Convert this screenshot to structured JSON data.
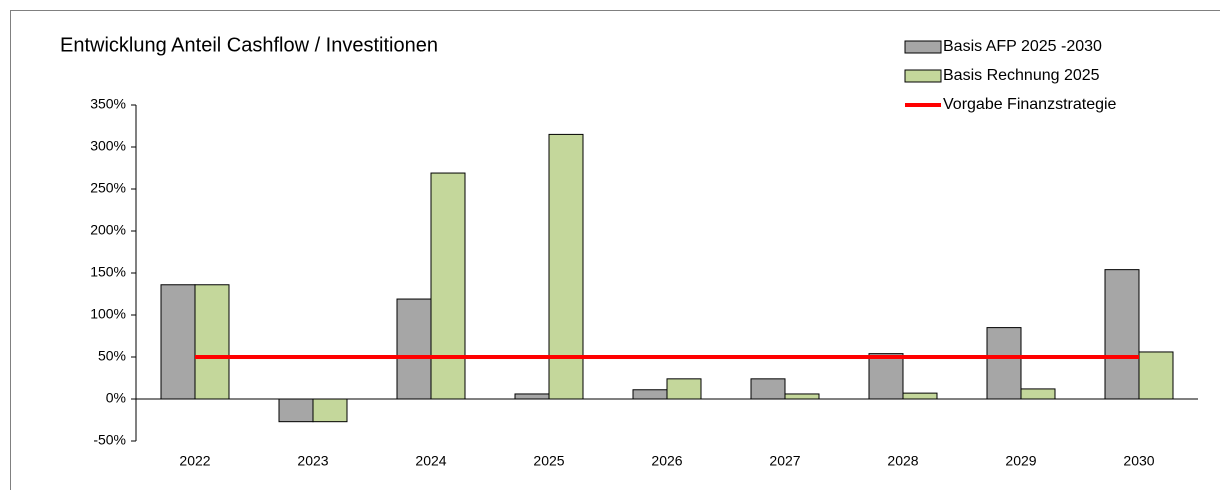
{
  "chart_data": {
    "type": "bar",
    "title": "Entwicklung Anteil Cashflow / Investitionen",
    "categories": [
      "2022",
      "2023",
      "2024",
      "2025",
      "2026",
      "2027",
      "2028",
      "2029",
      "2030"
    ],
    "series": [
      {
        "name": "Basis AFP 2025 -2030",
        "color": "#a6a6a6",
        "type": "bar",
        "values": [
          136,
          -27,
          119,
          6,
          11,
          24,
          54,
          85,
          154
        ]
      },
      {
        "name": "Basis Rechnung 2025",
        "color": "#c4d79b",
        "type": "bar",
        "values": [
          136,
          -27,
          269,
          315,
          24,
          6,
          7,
          12,
          56
        ]
      },
      {
        "name": "Vorgabe Finanzstrategie",
        "color": "#ff0000",
        "type": "line",
        "values": [
          50,
          50,
          50,
          50,
          50,
          50,
          50,
          50,
          50
        ]
      }
    ],
    "ylim": [
      -50,
      350
    ],
    "yticks": [
      {
        "value": -50,
        "label": "-50%"
      },
      {
        "value": 0,
        "label": "0%"
      },
      {
        "value": 50,
        "label": "50%"
      },
      {
        "value": 100,
        "label": "100%"
      },
      {
        "value": 150,
        "label": "150%"
      },
      {
        "value": 200,
        "label": "200%"
      },
      {
        "value": 250,
        "label": "250%"
      },
      {
        "value": 300,
        "label": "300%"
      },
      {
        "value": 350,
        "label": "350%"
      }
    ],
    "legend": "top-right",
    "grid": false
  }
}
